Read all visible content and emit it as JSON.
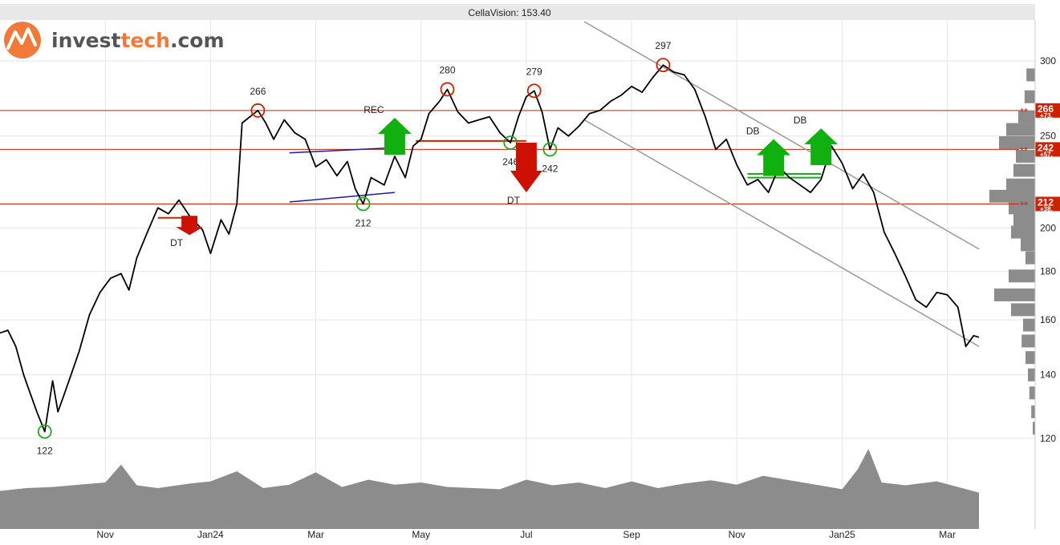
{
  "header": {
    "title": "CellaVision: 153.40"
  },
  "logo": {
    "part1": "invest",
    "part2": "tech",
    "part3": ".com",
    "icon": "investtech-logo-icon"
  },
  "chart_data": {
    "type": "line",
    "title": "CellaVision: 153.40",
    "y_scale": "log",
    "ylim": [
      117,
      330
    ],
    "xlim": [
      0,
      18.7
    ],
    "y_ticks": [
      120,
      140,
      160,
      180,
      200,
      250,
      300
    ],
    "x_ticks": [
      {
        "label": "Nov",
        "x": 2
      },
      {
        "label": "Jan24",
        "x": 4
      },
      {
        "label": "Mar",
        "x": 6
      },
      {
        "label": "May",
        "x": 8
      },
      {
        "label": "Jul",
        "x": 10
      },
      {
        "label": "Sep",
        "x": 12
      },
      {
        "label": "Nov",
        "x": 14
      },
      {
        "label": "Jan25",
        "x": 16
      },
      {
        "label": "Mar",
        "x": 18
      }
    ],
    "series": [
      {
        "values": [
          [
            0,
            155
          ],
          [
            0.15,
            156
          ],
          [
            0.3,
            150
          ],
          [
            0.45,
            140
          ],
          [
            0.55,
            135
          ],
          [
            0.7,
            128
          ],
          [
            0.85,
            122
          ],
          [
            1.0,
            138
          ],
          [
            1.1,
            128
          ],
          [
            1.25,
            135
          ],
          [
            1.5,
            148
          ],
          [
            1.7,
            162
          ],
          [
            1.9,
            171
          ],
          [
            2.1,
            177
          ],
          [
            2.3,
            179
          ],
          [
            2.45,
            172
          ],
          [
            2.6,
            186
          ],
          [
            2.8,
            198
          ],
          [
            3.0,
            210
          ],
          [
            3.2,
            207
          ],
          [
            3.4,
            214
          ],
          [
            3.6,
            206
          ],
          [
            3.85,
            199
          ],
          [
            4.0,
            188
          ],
          [
            4.2,
            204
          ],
          [
            4.35,
            197
          ],
          [
            4.5,
            212
          ],
          [
            4.6,
            258
          ],
          [
            4.75,
            262
          ],
          [
            4.9,
            266
          ],
          [
            5.05,
            258
          ],
          [
            5.2,
            248
          ],
          [
            5.4,
            260
          ],
          [
            5.6,
            252
          ],
          [
            5.8,
            248
          ],
          [
            6.0,
            232
          ],
          [
            6.2,
            236
          ],
          [
            6.4,
            227
          ],
          [
            6.6,
            235
          ],
          [
            6.75,
            220
          ],
          [
            6.9,
            212
          ],
          [
            7.05,
            226
          ],
          [
            7.3,
            222
          ],
          [
            7.5,
            238
          ],
          [
            7.7,
            226
          ],
          [
            7.85,
            244
          ],
          [
            8.0,
            248
          ],
          [
            8.15,
            264
          ],
          [
            8.35,
            272
          ],
          [
            8.5,
            280
          ],
          [
            8.7,
            265
          ],
          [
            8.9,
            258
          ],
          [
            9.1,
            260
          ],
          [
            9.3,
            262
          ],
          [
            9.5,
            252
          ],
          [
            9.7,
            246
          ],
          [
            9.85,
            262
          ],
          [
            10.0,
            275
          ],
          [
            10.15,
            279
          ],
          [
            10.3,
            265
          ],
          [
            10.45,
            242
          ],
          [
            10.6,
            255
          ],
          [
            10.8,
            250
          ],
          [
            11.0,
            256
          ],
          [
            11.2,
            264
          ],
          [
            11.4,
            266
          ],
          [
            11.6,
            272
          ],
          [
            11.8,
            276
          ],
          [
            12.0,
            282
          ],
          [
            12.2,
            278
          ],
          [
            12.4,
            288
          ],
          [
            12.6,
            297
          ],
          [
            12.8,
            292
          ],
          [
            13.0,
            290
          ],
          [
            13.2,
            280
          ],
          [
            13.4,
            262
          ],
          [
            13.6,
            242
          ],
          [
            13.8,
            248
          ],
          [
            14.0,
            233
          ],
          [
            14.2,
            222
          ],
          [
            14.4,
            225
          ],
          [
            14.6,
            218
          ],
          [
            14.8,
            232
          ],
          [
            15.0,
            226
          ],
          [
            15.2,
            222
          ],
          [
            15.4,
            218
          ],
          [
            15.6,
            225
          ],
          [
            15.8,
            244
          ],
          [
            16.0,
            234
          ],
          [
            16.2,
            220
          ],
          [
            16.4,
            228
          ],
          [
            16.6,
            218
          ],
          [
            16.8,
            198
          ],
          [
            17.0,
            188
          ],
          [
            17.2,
            178
          ],
          [
            17.4,
            168
          ],
          [
            17.6,
            165
          ],
          [
            17.8,
            171
          ],
          [
            18.0,
            170
          ],
          [
            18.2,
            165
          ],
          [
            18.35,
            150
          ],
          [
            18.5,
            154
          ],
          [
            18.6,
            153.4
          ]
        ]
      }
    ],
    "volume": {
      "values": [
        [
          0,
          0.25
        ],
        [
          0.5,
          0.3
        ],
        [
          1.0,
          0.32
        ],
        [
          1.5,
          0.36
        ],
        [
          2.0,
          0.4
        ],
        [
          2.3,
          0.72
        ],
        [
          2.6,
          0.35
        ],
        [
          3.0,
          0.3
        ],
        [
          3.6,
          0.38
        ],
        [
          4.0,
          0.42
        ],
        [
          4.5,
          0.6
        ],
        [
          5.0,
          0.3
        ],
        [
          5.5,
          0.36
        ],
        [
          6.0,
          0.58
        ],
        [
          6.5,
          0.32
        ],
        [
          7.0,
          0.45
        ],
        [
          7.5,
          0.36
        ],
        [
          8.0,
          0.4
        ],
        [
          8.5,
          0.32
        ],
        [
          9.0,
          0.3
        ],
        [
          9.5,
          0.28
        ],
        [
          10.0,
          0.45
        ],
        [
          10.5,
          0.35
        ],
        [
          11.0,
          0.4
        ],
        [
          11.5,
          0.3
        ],
        [
          12.0,
          0.42
        ],
        [
          12.5,
          0.3
        ],
        [
          13.0,
          0.38
        ],
        [
          13.5,
          0.44
        ],
        [
          14.0,
          0.36
        ],
        [
          14.5,
          0.52
        ],
        [
          15.0,
          0.44
        ],
        [
          15.5,
          0.36
        ],
        [
          16.0,
          0.28
        ],
        [
          16.3,
          0.64
        ],
        [
          16.5,
          1.0
        ],
        [
          16.75,
          0.4
        ],
        [
          17.2,
          0.35
        ],
        [
          17.8,
          0.42
        ],
        [
          18.6,
          0.22
        ]
      ]
    },
    "horizontal_levels": [
      {
        "value": 266,
        "label": "266",
        "sub": "+73."
      },
      {
        "value": 242,
        "label": "242",
        "sub": "+57."
      },
      {
        "value": 212,
        "label": "212",
        "sub": "+38."
      }
    ],
    "level_marker": "**",
    "point_labels": [
      {
        "x": 0.85,
        "y": 122,
        "text": "122",
        "type": "bottom"
      },
      {
        "x": 4.9,
        "y": 266,
        "text": "266",
        "type": "top"
      },
      {
        "x": 6.9,
        "y": 212,
        "text": "212",
        "type": "bottom"
      },
      {
        "x": 8.5,
        "y": 280,
        "text": "280",
        "type": "top"
      },
      {
        "x": 9.7,
        "y": 246,
        "text": "246",
        "type": "bottom"
      },
      {
        "x": 10.15,
        "y": 279,
        "text": "279",
        "type": "top"
      },
      {
        "x": 10.45,
        "y": 242,
        "text": "242",
        "type": "bottom"
      },
      {
        "x": 12.6,
        "y": 297,
        "text": "297",
        "type": "top"
      }
    ],
    "signals": [
      {
        "text": "DT",
        "x": 3.6,
        "y": 206,
        "dir": "down"
      },
      {
        "text": "REC",
        "x": 7.5,
        "y": 238,
        "dir": "up"
      },
      {
        "text": "DT",
        "x": 10.0,
        "y": 246,
        "dir": "down"
      },
      {
        "text": "DB",
        "x": 14.7,
        "y": 226,
        "dir": "up"
      },
      {
        "text": "DB",
        "x": 15.6,
        "y": 232,
        "dir": "up"
      }
    ],
    "trend_channels": [
      {
        "x1": 11.1,
        "y1": 330,
        "x2": 18.6,
        "y2": 190
      },
      {
        "x1": 11.1,
        "y1": 260,
        "x2": 18.6,
        "y2": 150
      }
    ],
    "rectangle_lines": [
      {
        "x1": 5.5,
        "y1": 240,
        "x2": 7.5,
        "y2": 243
      },
      {
        "x1": 5.5,
        "y1": 213,
        "x2": 7.5,
        "y2": 218
      }
    ],
    "breakout_lines": [
      {
        "x1": 3.0,
        "y1": 205,
        "x2": 3.75,
        "y2": 205,
        "color": "#cc2200"
      },
      {
        "x1": 7.9,
        "y1": 247,
        "x2": 10.0,
        "y2": 247,
        "color": "#cc2200"
      },
      {
        "x1": 14.2,
        "y1": 226,
        "x2": 15.6,
        "y2": 226,
        "color": "#1fa81f"
      },
      {
        "x1": 14.2,
        "y1": 228,
        "x2": 15.6,
        "y2": 228,
        "color": "#1fa81f"
      }
    ],
    "volume_profile": [
      {
        "y": 290,
        "w": 0.18
      },
      {
        "y": 275,
        "w": 0.22
      },
      {
        "y": 262,
        "w": 0.35
      },
      {
        "y": 254,
        "w": 0.6
      },
      {
        "y": 246,
        "w": 0.75
      },
      {
        "y": 238,
        "w": 0.4
      },
      {
        "y": 230,
        "w": 0.45
      },
      {
        "y": 222,
        "w": 0.6
      },
      {
        "y": 216,
        "w": 0.95
      },
      {
        "y": 210,
        "w": 0.55
      },
      {
        "y": 204,
        "w": 0.45
      },
      {
        "y": 198,
        "w": 0.5
      },
      {
        "y": 192,
        "w": 0.3
      },
      {
        "y": 186,
        "w": 0.2
      },
      {
        "y": 178,
        "w": 0.55
      },
      {
        "y": 170,
        "w": 0.85
      },
      {
        "y": 164,
        "w": 0.5
      },
      {
        "y": 158,
        "w": 0.25
      },
      {
        "y": 152,
        "w": 0.28
      },
      {
        "y": 146,
        "w": 0.2
      },
      {
        "y": 140,
        "w": 0.15
      },
      {
        "y": 134,
        "w": 0.12
      },
      {
        "y": 128,
        "w": 0.08
      },
      {
        "y": 123,
        "w": 0.05
      }
    ],
    "colors": {
      "price": "#000000",
      "level": "#cc2200",
      "top_circle": "#cc2200",
      "bottom_circle": "#1fa81f",
      "arrow_up": "#11b011",
      "arrow_down": "#cc1100",
      "channel": "#999999",
      "rectangle": "#1a1aa8",
      "volume": "#8c8c8c",
      "grid": "#e6e6e6"
    }
  }
}
